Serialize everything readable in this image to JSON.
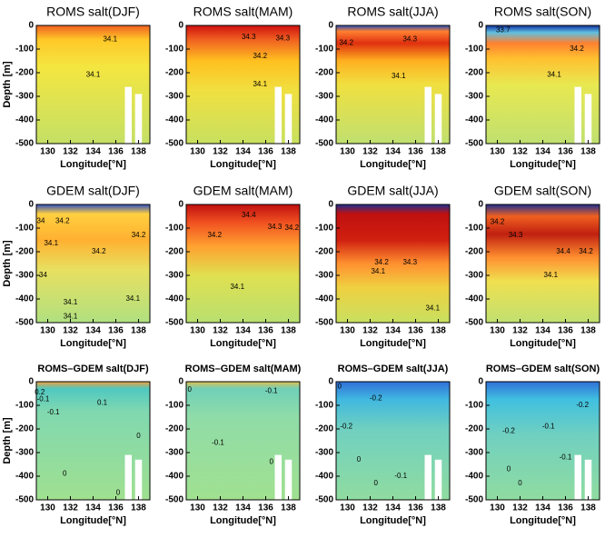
{
  "chart_data": [
    {
      "type": "heatmap",
      "title": "ROMS salt(DJF)",
      "xlabel": "Longitude[°N]",
      "ylabel": "Depth [m]",
      "xlim": [
        129,
        139
      ],
      "xticks": [
        130,
        132,
        134,
        136,
        138
      ],
      "ylim": [
        -500,
        0
      ],
      "yticks": [
        0,
        -100,
        -200,
        -300,
        -400,
        -500
      ],
      "annotations": [
        {
          "text": "34.1",
          "x": 135.5,
          "y": -60
        },
        {
          "text": "34.1",
          "x": 134,
          "y": -210
        }
      ]
    },
    {
      "type": "heatmap",
      "title": "ROMS salt(MAM)",
      "xlabel": "Longitude[°N]",
      "xlim": [
        129,
        139
      ],
      "xticks": [
        130,
        132,
        134,
        136,
        138
      ],
      "ylim": [
        -500,
        0
      ],
      "yticks": [
        0,
        -100,
        -200,
        -300,
        -400,
        -500
      ],
      "annotations": [
        {
          "text": "34.3",
          "x": 134.5,
          "y": -50
        },
        {
          "text": "34.3",
          "x": 137.5,
          "y": -55
        },
        {
          "text": "34.2",
          "x": 135.5,
          "y": -130
        },
        {
          "text": "34.1",
          "x": 135.5,
          "y": -250
        }
      ]
    },
    {
      "type": "heatmap",
      "title": "ROMS salt(JJA)",
      "xlabel": "Longitude[°N]",
      "xlim": [
        129,
        139
      ],
      "xticks": [
        130,
        132,
        134,
        136,
        138
      ],
      "ylim": [
        -500,
        0
      ],
      "yticks": [
        0,
        -100,
        -200,
        -300,
        -400,
        -500
      ],
      "annotations": [
        {
          "text": "34.2",
          "x": 129.9,
          "y": -75
        },
        {
          "text": "34.3",
          "x": 135.5,
          "y": -60
        },
        {
          "text": "34.1",
          "x": 134.5,
          "y": -215
        }
      ]
    },
    {
      "type": "heatmap",
      "title": "ROMS salt(SON)",
      "xlabel": "Longitude[°N]",
      "xlim": [
        129,
        139
      ],
      "xticks": [
        130,
        132,
        134,
        136,
        138
      ],
      "ylim": [
        -500,
        0
      ],
      "yticks": [
        0,
        -100,
        -200,
        -300,
        -400,
        -500
      ],
      "annotations": [
        {
          "text": "33.7",
          "x": 130.5,
          "y": -20
        },
        {
          "text": "34.2",
          "x": 137,
          "y": -100
        },
        {
          "text": "34.1",
          "x": 135,
          "y": -210
        }
      ]
    },
    {
      "type": "heatmap",
      "title": "GDEM salt(DJF)",
      "xlabel": "Longitude[°N]",
      "ylabel": "Depth [m]",
      "xlim": [
        129,
        139
      ],
      "xticks": [
        130,
        132,
        134,
        136,
        138
      ],
      "ylim": [
        -500,
        0
      ],
      "yticks": [
        0,
        -100,
        -200,
        -300,
        -400,
        -500
      ],
      "annotations": [
        {
          "text": "34",
          "x": 129.4,
          "y": -70
        },
        {
          "text": "34.2",
          "x": 131.3,
          "y": -70
        },
        {
          "text": "34.1",
          "x": 130.3,
          "y": -165
        },
        {
          "text": "34.2",
          "x": 134.5,
          "y": -200
        },
        {
          "text": "34.2",
          "x": 138,
          "y": -130
        },
        {
          "text": "34",
          "x": 129.6,
          "y": -300
        },
        {
          "text": "34.1",
          "x": 132,
          "y": -415
        },
        {
          "text": "34.1",
          "x": 137.5,
          "y": -400
        },
        {
          "text": "34.1",
          "x": 132,
          "y": -475
        }
      ]
    },
    {
      "type": "heatmap",
      "title": "GDEM salt(MAM)",
      "xlabel": "Longitude[°N]",
      "xlim": [
        129,
        139
      ],
      "xticks": [
        130,
        132,
        134,
        136,
        138
      ],
      "ylim": [
        -500,
        0
      ],
      "yticks": [
        0,
        -100,
        -200,
        -300,
        -400,
        -500
      ],
      "annotations": [
        {
          "text": "34.4",
          "x": 134.5,
          "y": -45
        },
        {
          "text": "34.2",
          "x": 131.5,
          "y": -130
        },
        {
          "text": "34.3",
          "x": 136.8,
          "y": -95
        },
        {
          "text": "34.2",
          "x": 138.3,
          "y": -100
        },
        {
          "text": "34.1",
          "x": 133.5,
          "y": -350
        }
      ]
    },
    {
      "type": "heatmap",
      "title": "GDEM salt(JJA)",
      "xlabel": "Longitude[°N]",
      "xlim": [
        129,
        139
      ],
      "xticks": [
        130,
        132,
        134,
        136,
        138
      ],
      "ylim": [
        -500,
        0
      ],
      "yticks": [
        0,
        -100,
        -200,
        -300,
        -400,
        -500
      ],
      "annotations": [
        {
          "text": "34.2",
          "x": 133,
          "y": -245
        },
        {
          "text": "34.1",
          "x": 132.7,
          "y": -285
        },
        {
          "text": "34.3",
          "x": 135.5,
          "y": -245
        },
        {
          "text": "34.1",
          "x": 137.5,
          "y": -440
        }
      ]
    },
    {
      "type": "heatmap",
      "title": "GDEM salt(SON)",
      "xlabel": "Longitude[°N]",
      "xlim": [
        129,
        139
      ],
      "xticks": [
        130,
        132,
        134,
        136,
        138
      ],
      "ylim": [
        -500,
        0
      ],
      "yticks": [
        0,
        -100,
        -200,
        -300,
        -400,
        -500
      ],
      "annotations": [
        {
          "text": "34.2",
          "x": 130,
          "y": -75
        },
        {
          "text": "34.3",
          "x": 131.6,
          "y": -130
        },
        {
          "text": "34.4",
          "x": 135.8,
          "y": -200
        },
        {
          "text": "34.2",
          "x": 137.8,
          "y": -200
        },
        {
          "text": "34.1",
          "x": 134.7,
          "y": -300
        }
      ]
    },
    {
      "type": "heatmap",
      "title": "ROMS–GDEM salt(DJF)",
      "xlabel": "Longitude[°N]",
      "ylabel": "Depth [m]",
      "xlim": [
        129,
        139
      ],
      "xticks": [
        130,
        132,
        134,
        136,
        138
      ],
      "ylim": [
        -500,
        0
      ],
      "yticks": [
        0,
        -100,
        -200,
        -300,
        -400,
        -500
      ],
      "annotations": [
        {
          "text": "0.2",
          "x": 129.3,
          "y": -45
        },
        {
          "text": "-0.1",
          "x": 129.6,
          "y": -75
        },
        {
          "text": "0.1",
          "x": 134.8,
          "y": -90
        },
        {
          "text": "-0.1",
          "x": 130.5,
          "y": -130
        },
        {
          "text": "0",
          "x": 131.5,
          "y": -390
        },
        {
          "text": "0",
          "x": 136.2,
          "y": -470
        },
        {
          "text": "0",
          "x": 138,
          "y": -230
        }
      ]
    },
    {
      "type": "heatmap",
      "title": "ROMS–GDEM salt(MAM)",
      "xlabel": "Longitude[°N]",
      "xlim": [
        129,
        139
      ],
      "xticks": [
        130,
        132,
        134,
        136,
        138
      ],
      "ylim": [
        -500,
        0
      ],
      "yticks": [
        0,
        -100,
        -200,
        -300,
        -400,
        -500
      ],
      "annotations": [
        {
          "text": "0",
          "x": 129.3,
          "y": -35
        },
        {
          "text": "-0.1",
          "x": 136.5,
          "y": -40
        },
        {
          "text": "-0.1",
          "x": 131.8,
          "y": -260
        },
        {
          "text": "0",
          "x": 136.5,
          "y": -340
        }
      ]
    },
    {
      "type": "heatmap",
      "title": "ROMS–GDEM salt(JJA)",
      "xlabel": "Longitude[°N]",
      "xlim": [
        129,
        139
      ],
      "xticks": [
        130,
        132,
        134,
        136,
        138
      ],
      "ylim": [
        -500,
        0
      ],
      "yticks": [
        0,
        -100,
        -200,
        -300,
        -400,
        -500
      ],
      "annotations": [
        {
          "text": "0",
          "x": 129.3,
          "y": -20
        },
        {
          "text": "-0.2",
          "x": 132.5,
          "y": -70
        },
        {
          "text": "-0.2",
          "x": 129.9,
          "y": -190
        },
        {
          "text": "0",
          "x": 131,
          "y": -330
        },
        {
          "text": "0",
          "x": 132.5,
          "y": -430
        },
        {
          "text": "-0.1",
          "x": 134.7,
          "y": -400
        }
      ]
    },
    {
      "type": "heatmap",
      "title": "ROMS–GDEM salt(SON)",
      "xlabel": "Longitude[°N]",
      "xlim": [
        129,
        139
      ],
      "xticks": [
        130,
        132,
        134,
        136,
        138
      ],
      "ylim": [
        -500,
        0
      ],
      "yticks": [
        0,
        -100,
        -200,
        -300,
        -400,
        -500
      ],
      "annotations": [
        {
          "text": "-0.2",
          "x": 131,
          "y": -210
        },
        {
          "text": "-0.1",
          "x": 134.5,
          "y": -190
        },
        {
          "text": "-0.2",
          "x": 137.5,
          "y": -100
        },
        {
          "text": "-0.1",
          "x": 136,
          "y": -320
        },
        {
          "text": "0",
          "x": 131,
          "y": -370
        },
        {
          "text": "0",
          "x": 132,
          "y": -430
        }
      ]
    }
  ]
}
